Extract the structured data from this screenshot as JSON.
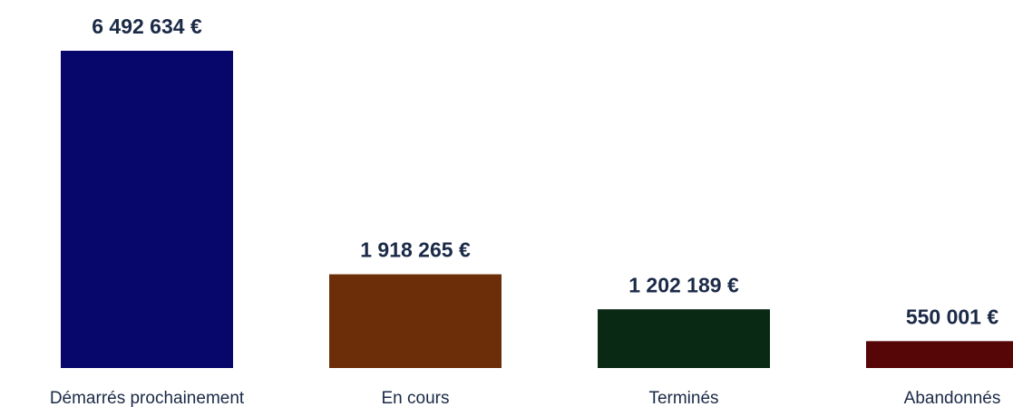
{
  "chart_data": {
    "type": "bar",
    "categories": [
      "Démarrés prochainement",
      "En cours",
      "Terminés",
      "Abandonnés"
    ],
    "values": [
      6492634,
      1918265,
      1202189,
      550001
    ],
    "value_labels": [
      "6 492 634 €",
      "1 918 265 €",
      "1 202 189 €",
      "550 001 €"
    ],
    "colors": [
      "#07076b",
      "#6b2e08",
      "#0a2914",
      "#560606"
    ]
  }
}
